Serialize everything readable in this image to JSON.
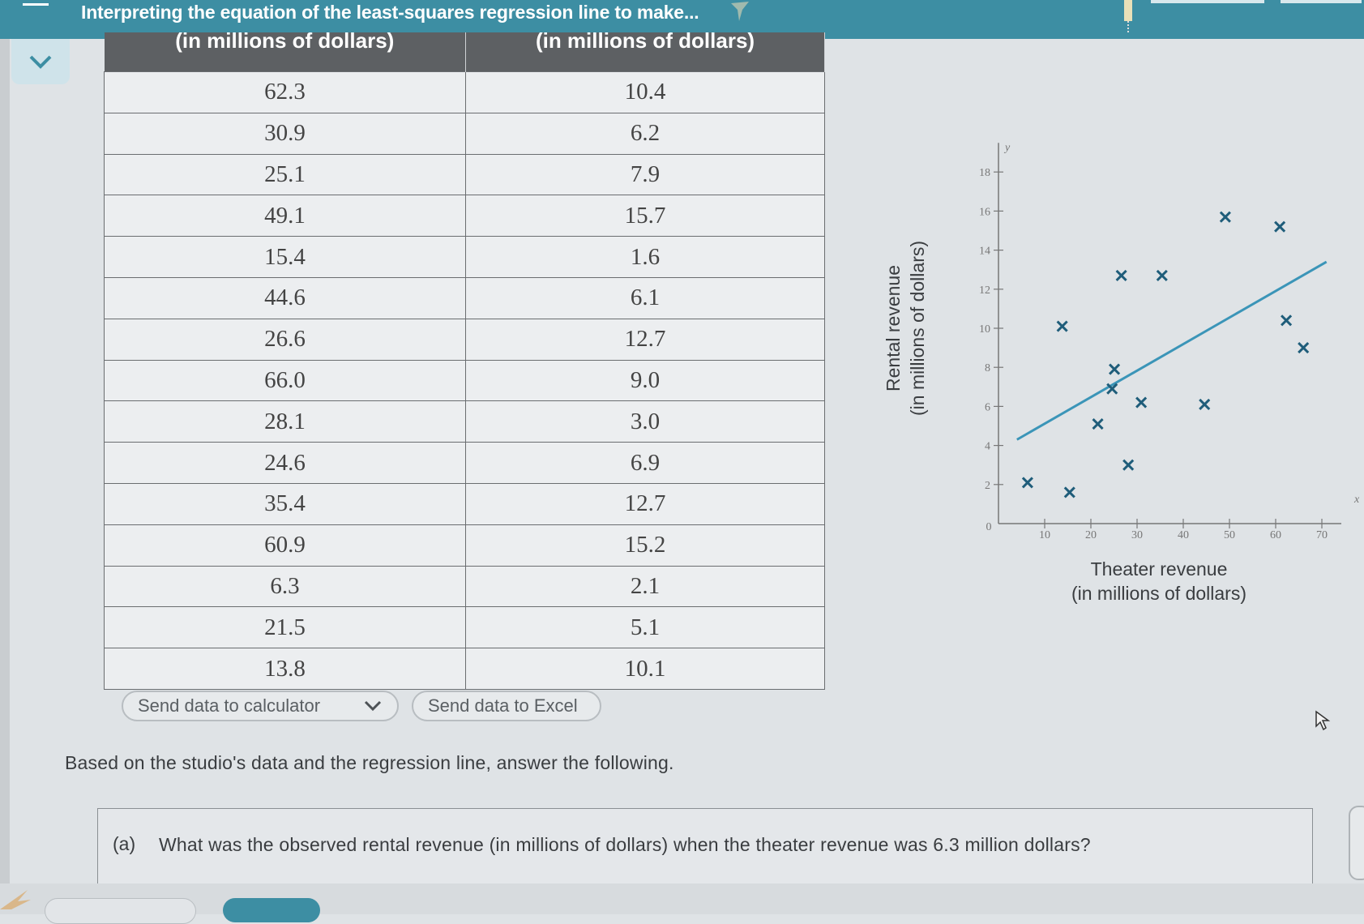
{
  "header": {
    "title": "Interpreting the equation of the least-squares regression line to make..."
  },
  "table": {
    "headers": [
      "(in millions of dollars)",
      "(in millions of dollars)"
    ],
    "rows": [
      [
        "62.3",
        "10.4"
      ],
      [
        "30.9",
        "6.2"
      ],
      [
        "25.1",
        "7.9"
      ],
      [
        "49.1",
        "15.7"
      ],
      [
        "15.4",
        "1.6"
      ],
      [
        "44.6",
        "6.1"
      ],
      [
        "26.6",
        "12.7"
      ],
      [
        "66.0",
        "9.0"
      ],
      [
        "28.1",
        "3.0"
      ],
      [
        "24.6",
        "6.9"
      ],
      [
        "35.4",
        "12.7"
      ],
      [
        "60.9",
        "15.2"
      ],
      [
        "6.3",
        "2.1"
      ],
      [
        "21.5",
        "5.1"
      ],
      [
        "13.8",
        "10.1"
      ]
    ]
  },
  "buttons": {
    "calculator_label": "Send data to calculator",
    "excel_label": "Send data to Excel"
  },
  "chart_data": {
    "type": "scatter",
    "xlabel": [
      "Theater revenue",
      "(in millions of dollars)"
    ],
    "ylabel": [
      "Rental revenue",
      "(in millions of dollars)"
    ],
    "x_axis_symbol": "x",
    "y_axis_symbol": "y",
    "xlim": [
      0,
      70
    ],
    "ylim": [
      0,
      18
    ],
    "x_ticks": [
      10,
      20,
      30,
      40,
      50,
      60,
      70
    ],
    "y_ticks": [
      2,
      4,
      6,
      8,
      10,
      12,
      14,
      16,
      18
    ],
    "origin_label": "0",
    "points": [
      {
        "x": 62.3,
        "y": 10.4
      },
      {
        "x": 30.9,
        "y": 6.2
      },
      {
        "x": 25.1,
        "y": 7.9
      },
      {
        "x": 49.1,
        "y": 15.7
      },
      {
        "x": 15.4,
        "y": 1.6
      },
      {
        "x": 44.6,
        "y": 6.1
      },
      {
        "x": 26.6,
        "y": 12.7
      },
      {
        "x": 66.0,
        "y": 9.0
      },
      {
        "x": 28.1,
        "y": 3.0
      },
      {
        "x": 24.6,
        "y": 6.9
      },
      {
        "x": 35.4,
        "y": 12.7
      },
      {
        "x": 60.9,
        "y": 15.2
      },
      {
        "x": 6.3,
        "y": 2.1
      },
      {
        "x": 21.5,
        "y": 5.1
      },
      {
        "x": 13.8,
        "y": 10.1
      }
    ],
    "regression_line": {
      "x": [
        4,
        71
      ],
      "y": [
        4.3,
        13.4
      ]
    },
    "marker_color": "#1f5d7a",
    "line_color": "#3b95b8"
  },
  "main": {
    "prompt": "Based on the studio's data and the regression line, answer the following.",
    "question_part": "(a)",
    "question": "What was the observed rental revenue (in millions of dollars) when the theater revenue was 6.3 million dollars?"
  },
  "colors": {
    "header_bar": "#3d8ea3",
    "table_header": "#5d6063"
  }
}
